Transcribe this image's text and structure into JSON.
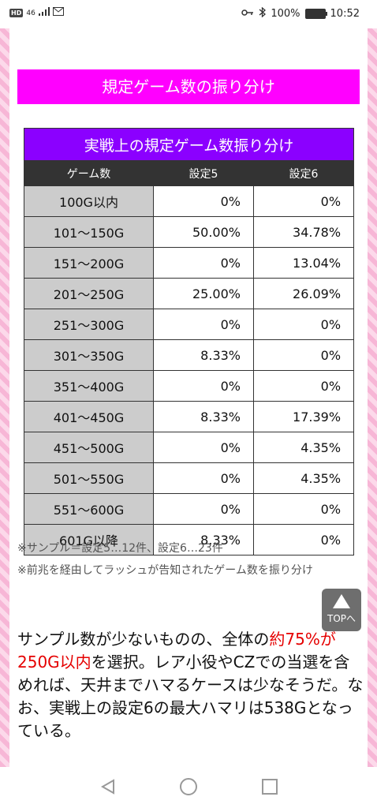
{
  "status": {
    "signal": "46",
    "battery": "100%",
    "time": "10:52"
  },
  "section_title": "規定ゲーム数の振り分け",
  "table": {
    "caption": "実戦上の規定ゲーム数振り分け",
    "headers": [
      "ゲーム数",
      "設定5",
      "設定6"
    ],
    "rows": [
      [
        "100G以内",
        "0%",
        "0%"
      ],
      [
        "101～150G",
        "50.00%",
        "34.78%"
      ],
      [
        "151～200G",
        "0%",
        "13.04%"
      ],
      [
        "201～250G",
        "25.00%",
        "26.09%"
      ],
      [
        "251～300G",
        "0%",
        "0%"
      ],
      [
        "301～350G",
        "8.33%",
        "0%"
      ],
      [
        "351～400G",
        "0%",
        "0%"
      ],
      [
        "401～450G",
        "8.33%",
        "17.39%"
      ],
      [
        "451～500G",
        "0%",
        "4.35%"
      ],
      [
        "501～550G",
        "0%",
        "4.35%"
      ],
      [
        "551～600G",
        "0%",
        "0%"
      ],
      [
        "601G以降",
        "8.33%",
        "0%"
      ]
    ]
  },
  "notes": [
    "※サンプル＝設定5…12件、設定6…23件",
    "※前兆を経由してラッシュが告知されたゲーム数を振り分け"
  ],
  "top_button": "TOPへ",
  "paragraph": {
    "p1": "サンプル数が少ないものの、全体の",
    "red": "約75%が250G以内",
    "p2": "を選択。レア小役やCZでの当選を含めれば、天井までハマるケースは少なそうだ。なお、実戦上の設定6の最大ハマリは538Gとなっている。"
  },
  "colors": {
    "section_bg": "#ff00ff",
    "caption_bg": "#8b00ff",
    "header_bg": "#333333",
    "label_bg": "#cccccc",
    "highlight": "#e50000"
  },
  "icons": [
    "key-icon",
    "bluetooth-icon",
    "battery-icon",
    "mail-icon",
    "back-icon",
    "home-icon",
    "recent-apps-icon"
  ]
}
